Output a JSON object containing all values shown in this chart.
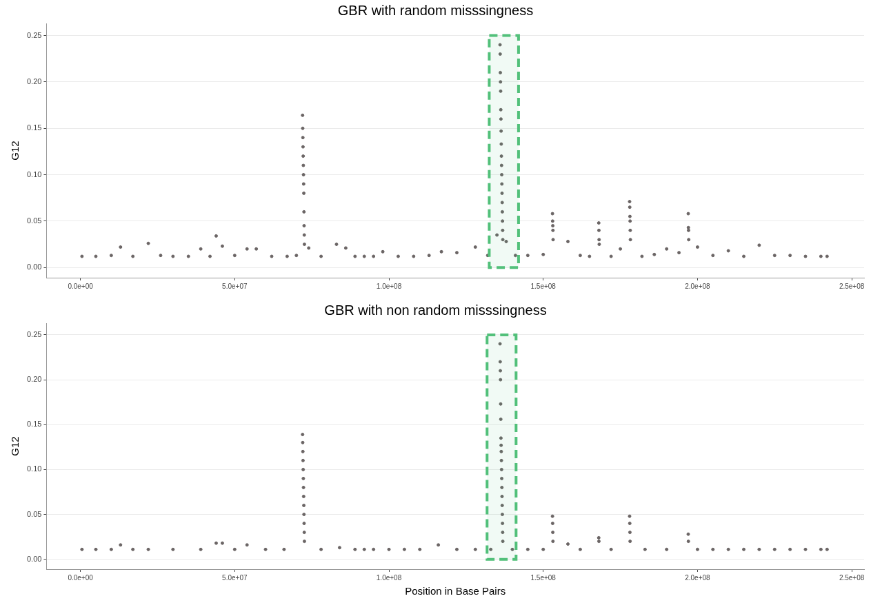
{
  "chart_data": [
    {
      "type": "scatter",
      "title": "GBR with random misssingness",
      "ylabel": "G12",
      "marker": "circle",
      "grid": "y",
      "bands": [
        {
          "axis": "x",
          "from": 132500000,
          "to": 142000000,
          "color": "#52c07a"
        }
      ],
      "xlim": [
        -11000000,
        254000000
      ],
      "ylim": [
        -0.011,
        0.263
      ],
      "xticks": [
        {
          "value": 0,
          "label": "0.0e+00"
        },
        {
          "value": 50000000,
          "label": "5.0e+07"
        },
        {
          "value": 100000000,
          "label": "1.0e+08"
        },
        {
          "value": 150000000,
          "label": "1.5e+08"
        },
        {
          "value": 200000000,
          "label": "2.0e+08"
        },
        {
          "value": 250000000,
          "label": "2.5e+08"
        }
      ],
      "yticks": [
        {
          "value": 0,
          "label": "0.00"
        },
        {
          "value": 0.05,
          "label": "0.05"
        },
        {
          "value": 0.1,
          "label": "0.10"
        },
        {
          "value": 0.15,
          "label": "0.15"
        },
        {
          "value": 0.2,
          "label": "0.20"
        },
        {
          "value": 0.25,
          "label": "0.25"
        }
      ],
      "series": [
        {
          "color": "#6b6565",
          "x": [
            500000,
            5000000,
            10000000,
            13000000,
            17000000,
            22000000,
            26000000,
            30000000,
            35000000,
            39000000,
            42000000,
            44000000,
            46000000,
            50000000,
            54000000,
            57000000,
            62000000,
            67000000,
            70000000,
            72000000,
            72050000,
            72100000,
            72150000,
            72200000,
            72250000,
            72300000,
            72350000,
            72400000,
            72450000,
            72500000,
            72550000,
            72600000,
            74000000,
            78000000,
            83000000,
            86000000,
            89000000,
            92000000,
            95000000,
            98000000,
            103000000,
            108000000,
            113000000,
            117000000,
            122000000,
            128000000,
            132000000,
            135000000,
            136000000,
            136050000,
            136100000,
            136150000,
            136200000,
            136250000,
            136300000,
            136350000,
            136400000,
            136450000,
            136500000,
            136550000,
            136600000,
            136650000,
            136700000,
            136750000,
            136800000,
            136850000,
            136900000,
            138000000,
            141000000,
            145000000,
            150000000,
            153000000,
            153050000,
            153100000,
            153150000,
            153200000,
            158000000,
            162000000,
            165000000,
            168000000,
            168050000,
            168100000,
            168150000,
            172000000,
            175000000,
            178000000,
            178050000,
            178100000,
            178150000,
            178200000,
            178250000,
            182000000,
            186000000,
            190000000,
            194000000,
            197000000,
            197050000,
            197100000,
            197150000,
            200000000,
            205000000,
            210000000,
            215000000,
            220000000,
            225000000,
            230000000,
            235000000,
            240000000,
            242000000
          ],
          "values": [
            0.012,
            0.012,
            0.013,
            0.022,
            0.012,
            0.026,
            0.013,
            0.012,
            0.012,
            0.02,
            0.012,
            0.034,
            0.023,
            0.013,
            0.02,
            0.02,
            0.012,
            0.012,
            0.013,
            0.164,
            0.15,
            0.14,
            0.13,
            0.12,
            0.11,
            0.1,
            0.09,
            0.08,
            0.06,
            0.045,
            0.035,
            0.025,
            0.021,
            0.012,
            0.025,
            0.021,
            0.012,
            0.012,
            0.012,
            0.017,
            0.012,
            0.012,
            0.013,
            0.017,
            0.016,
            0.022,
            0.013,
            0.035,
            0.24,
            0.23,
            0.21,
            0.2,
            0.19,
            0.17,
            0.16,
            0.147,
            0.133,
            0.12,
            0.11,
            0.1,
            0.09,
            0.08,
            0.07,
            0.06,
            0.05,
            0.04,
            0.03,
            0.028,
            0.013,
            0.013,
            0.014,
            0.058,
            0.05,
            0.045,
            0.04,
            0.03,
            0.028,
            0.013,
            0.012,
            0.048,
            0.04,
            0.03,
            0.025,
            0.012,
            0.02,
            0.071,
            0.065,
            0.055,
            0.05,
            0.04,
            0.03,
            0.012,
            0.014,
            0.02,
            0.016,
            0.058,
            0.043,
            0.04,
            0.03,
            0.022,
            0.013,
            0.018,
            0.012,
            0.024,
            0.013,
            0.013,
            0.012,
            0.012,
            0.012
          ]
        }
      ]
    },
    {
      "type": "scatter",
      "title": "GBR with non random misssingness",
      "xlabel": "Position in Base Pairs",
      "ylabel": "G12",
      "marker": "circle",
      "grid": "y",
      "bands": [
        {
          "axis": "x",
          "from": 131800000,
          "to": 141200000,
          "color": "#52c07a"
        }
      ],
      "xlim": [
        -11000000,
        254000000
      ],
      "ylim": [
        -0.011,
        0.263
      ],
      "xticks": [
        {
          "value": 0,
          "label": "0.0e+00"
        },
        {
          "value": 50000000,
          "label": "5.0e+07"
        },
        {
          "value": 100000000,
          "label": "1.0e+08"
        },
        {
          "value": 150000000,
          "label": "1.5e+08"
        },
        {
          "value": 200000000,
          "label": "2.0e+08"
        },
        {
          "value": 250000000,
          "label": "2.5e+08"
        }
      ],
      "yticks": [
        {
          "value": 0,
          "label": "0.00"
        },
        {
          "value": 0.05,
          "label": "0.05"
        },
        {
          "value": 0.1,
          "label": "0.10"
        },
        {
          "value": 0.15,
          "label": "0.15"
        },
        {
          "value": 0.2,
          "label": "0.20"
        },
        {
          "value": 0.25,
          "label": "0.25"
        }
      ],
      "series": [
        {
          "color": "#6b6565",
          "x": [
            500000,
            5000000,
            10000000,
            13000000,
            17000000,
            22000000,
            30000000,
            39000000,
            44000000,
            46000000,
            50000000,
            54000000,
            60000000,
            66000000,
            72000000,
            72050000,
            72100000,
            72150000,
            72200000,
            72250000,
            72300000,
            72350000,
            72400000,
            72450000,
            72500000,
            72550000,
            72600000,
            78000000,
            84000000,
            89000000,
            92000000,
            95000000,
            100000000,
            105000000,
            110000000,
            116000000,
            122000000,
            128000000,
            133000000,
            136000000,
            136050000,
            136100000,
            136150000,
            136200000,
            136250000,
            136300000,
            136350000,
            136400000,
            136450000,
            136500000,
            136550000,
            136600000,
            136650000,
            136700000,
            136750000,
            136800000,
            136850000,
            136900000,
            140000000,
            145000000,
            150000000,
            153000000,
            153050000,
            153100000,
            153150000,
            158000000,
            162000000,
            168000000,
            168050000,
            172000000,
            178000000,
            178050000,
            178100000,
            178150000,
            183000000,
            190000000,
            197000000,
            197050000,
            200000000,
            205000000,
            210000000,
            215000000,
            220000000,
            225000000,
            230000000,
            235000000,
            240000000,
            242000000
          ],
          "values": [
            0.011,
            0.011,
            0.011,
            0.016,
            0.011,
            0.011,
            0.011,
            0.011,
            0.018,
            0.018,
            0.011,
            0.016,
            0.011,
            0.011,
            0.139,
            0.13,
            0.12,
            0.11,
            0.1,
            0.09,
            0.08,
            0.07,
            0.06,
            0.05,
            0.04,
            0.03,
            0.02,
            0.011,
            0.013,
            0.011,
            0.011,
            0.011,
            0.011,
            0.011,
            0.011,
            0.016,
            0.011,
            0.011,
            0.011,
            0.24,
            0.22,
            0.21,
            0.2,
            0.173,
            0.156,
            0.135,
            0.127,
            0.12,
            0.11,
            0.1,
            0.09,
            0.08,
            0.07,
            0.06,
            0.05,
            0.04,
            0.03,
            0.02,
            0.011,
            0.011,
            0.011,
            0.048,
            0.04,
            0.03,
            0.02,
            0.017,
            0.011,
            0.024,
            0.02,
            0.011,
            0.048,
            0.04,
            0.03,
            0.02,
            0.011,
            0.011,
            0.028,
            0.02,
            0.011,
            0.011,
            0.011,
            0.011,
            0.011,
            0.011,
            0.011,
            0.011,
            0.011,
            0.011
          ]
        }
      ]
    }
  ]
}
